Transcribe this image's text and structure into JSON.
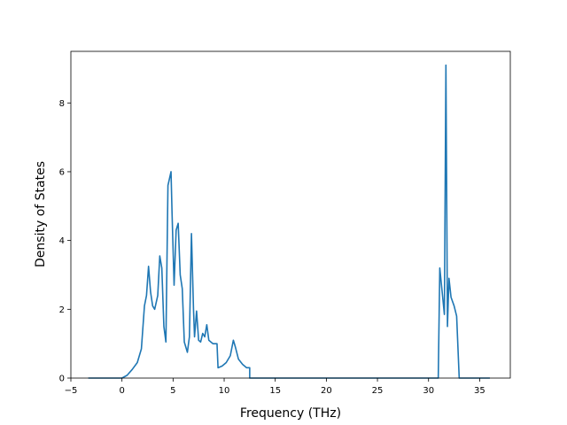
{
  "chart_data": {
    "type": "line",
    "title": "",
    "xlabel": "Frequency (THz)",
    "ylabel": "Density of States",
    "xlim": [
      -5.0,
      38.0
    ],
    "ylim": [
      0.0,
      9.5
    ],
    "xticks": [
      -5,
      0,
      5,
      10,
      15,
      20,
      25,
      30,
      35
    ],
    "xtick_labels": [
      "−5",
      "0",
      "5",
      "10",
      "15",
      "20",
      "25",
      "30",
      "35"
    ],
    "yticks": [
      0,
      2,
      4,
      6,
      8
    ],
    "ytick_labels": [
      "0",
      "2",
      "4",
      "6",
      "8"
    ],
    "grid": false,
    "legend": "none",
    "series": [
      {
        "color": "#1f77b4",
        "x": [
          -3.3,
          0.0,
          0.5,
          1.0,
          1.5,
          1.9,
          2.2,
          2.4,
          2.6,
          2.8,
          3.0,
          3.2,
          3.5,
          3.7,
          3.9,
          4.1,
          4.3,
          4.5,
          4.8,
          4.9,
          5.1,
          5.3,
          5.5,
          5.7,
          5.9,
          6.1,
          6.4,
          6.6,
          6.8,
          7.0,
          7.1,
          7.3,
          7.5,
          7.7,
          7.9,
          8.1,
          8.3,
          8.5,
          8.7,
          8.9,
          9.3,
          9.4,
          9.8,
          10.2,
          10.6,
          10.9,
          11.1,
          11.4,
          11.8,
          12.2,
          12.5,
          12.5,
          12.8,
          13.5,
          20.0,
          28.0,
          30.95,
          31.1,
          31.3,
          31.55,
          31.7,
          31.85,
          32.0,
          32.2,
          32.5,
          32.75,
          33.0,
          33.5,
          36.0
        ],
        "y": [
          0.0,
          0.0,
          0.08,
          0.25,
          0.45,
          0.85,
          2.1,
          2.4,
          3.25,
          2.5,
          2.1,
          2.0,
          2.4,
          3.55,
          3.2,
          1.5,
          1.05,
          5.6,
          6.0,
          4.8,
          2.7,
          4.3,
          4.5,
          3.0,
          2.6,
          1.05,
          0.75,
          1.2,
          4.2,
          2.0,
          1.2,
          1.95,
          1.1,
          1.05,
          1.3,
          1.2,
          1.55,
          1.1,
          1.05,
          1.0,
          1.0,
          0.3,
          0.35,
          0.45,
          0.65,
          1.1,
          0.9,
          0.55,
          0.4,
          0.3,
          0.3,
          0.0,
          0.0,
          0.0,
          0.0,
          0.0,
          0.0,
          3.2,
          2.6,
          1.85,
          9.1,
          1.5,
          2.9,
          2.35,
          2.1,
          1.8,
          0.0,
          0.0,
          0.0
        ]
      }
    ]
  }
}
